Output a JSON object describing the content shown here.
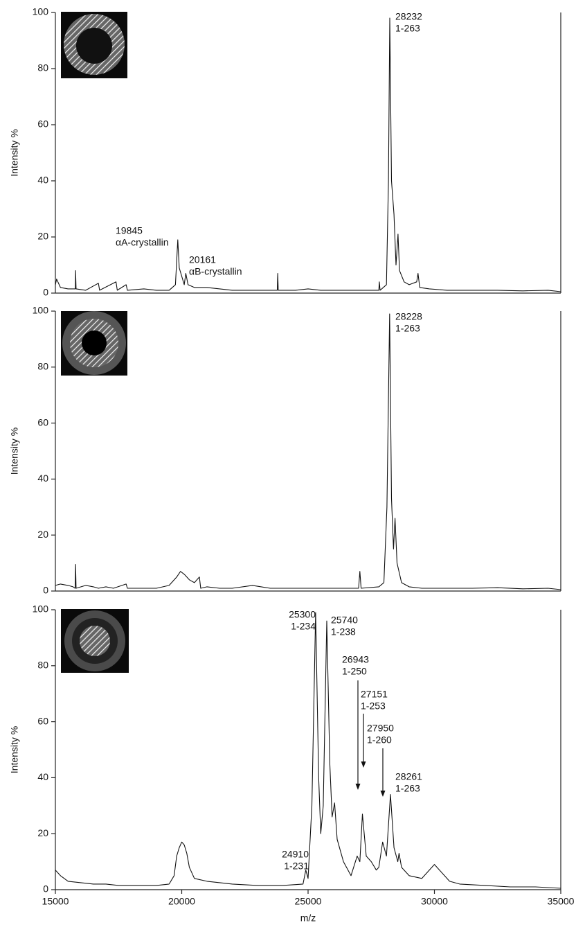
{
  "chart_data": [
    {
      "type": "line",
      "y_label": "Intensity %",
      "xlim": [
        15000,
        35000
      ],
      "ylim": [
        0,
        100
      ],
      "yticks": [
        0,
        20,
        40,
        60,
        80,
        100
      ],
      "x": [
        15000,
        15050,
        15200,
        15500,
        15790,
        15800,
        15820,
        16200,
        16700,
        16750,
        17400,
        17450,
        17800,
        17850,
        18500,
        19000,
        19500,
        19750,
        19845,
        19900,
        20000,
        20100,
        20161,
        20250,
        20500,
        21000,
        21500,
        22000,
        22500,
        23000,
        23780,
        23800,
        23820,
        24500,
        25000,
        25500,
        26000,
        26500,
        27000,
        27500,
        27800,
        27820,
        27850,
        28100,
        28180,
        28232,
        28300,
        28400,
        28480,
        28560,
        28620,
        28800,
        29000,
        29300,
        29350,
        29420,
        29800,
        30500,
        31500,
        32500,
        33500,
        34500,
        35000
      ],
      "values": [
        3,
        5,
        2,
        1.5,
        1.5,
        8,
        1.5,
        1,
        3.5,
        1,
        4,
        1,
        3,
        1,
        1.5,
        1,
        1,
        3,
        19,
        9,
        6,
        3,
        7,
        3,
        2,
        2,
        1.5,
        1,
        1,
        1,
        1,
        7,
        1,
        1,
        1.5,
        1,
        1,
        1,
        1,
        1,
        1,
        4,
        1,
        3,
        40,
        98,
        40,
        28,
        10,
        21,
        8,
        4,
        3,
        4,
        7,
        2,
        1.5,
        1,
        1,
        1,
        0.8,
        1,
        0.5
      ],
      "color": "#111111",
      "annotations": [
        [
          "19845",
          "αA-crystallin"
        ],
        [
          "20161",
          "αB-crystallin"
        ],
        [
          "28232",
          "1-263"
        ]
      ]
    },
    {
      "type": "line",
      "y_label": "Intensity %",
      "xlim": [
        15000,
        35000
      ],
      "ylim": [
        0,
        100
      ],
      "yticks": [
        0,
        20,
        40,
        60,
        80,
        100
      ],
      "x": [
        15000,
        15200,
        15500,
        15700,
        15780,
        15800,
        15820,
        16200,
        16500,
        16700,
        17000,
        17300,
        17800,
        17850,
        18500,
        19000,
        19500,
        19800,
        19950,
        20100,
        20300,
        20500,
        20700,
        20750,
        21000,
        21500,
        22000,
        22800,
        23500,
        24500,
        25500,
        26500,
        27000,
        27050,
        27100,
        27800,
        28000,
        28120,
        28228,
        28300,
        28380,
        28440,
        28520,
        28700,
        29000,
        29500,
        30500,
        31500,
        32500,
        33500,
        34500,
        35000
      ],
      "values": [
        2,
        2.5,
        2,
        1.5,
        1,
        9.5,
        1,
        2,
        1.5,
        1,
        1.5,
        1,
        2.5,
        1,
        1,
        1,
        2,
        5,
        7,
        6,
        4,
        3,
        5,
        1,
        1.5,
        1,
        1,
        2,
        1,
        1,
        1,
        1,
        1,
        7,
        1,
        1.5,
        3,
        30,
        99,
        33,
        15,
        26,
        10,
        3,
        1.5,
        1,
        1,
        1,
        1.2,
        0.8,
        1,
        0.5
      ],
      "color": "#111111",
      "annotations": [
        [
          "28228",
          "1-263"
        ]
      ]
    },
    {
      "type": "line",
      "y_label": "Intensity %",
      "x_label": "m/z",
      "xlim": [
        15000,
        35000
      ],
      "xticks": [
        15000,
        20000,
        25000,
        30000,
        35000
      ],
      "ylim": [
        0,
        100
      ],
      "yticks": [
        0,
        20,
        40,
        60,
        80,
        100
      ],
      "x": [
        15000,
        15200,
        15500,
        16000,
        16500,
        17000,
        17500,
        18500,
        19000,
        19500,
        19700,
        19800,
        19900,
        20000,
        20100,
        20200,
        20300,
        20500,
        21000,
        22000,
        23000,
        24000,
        24800,
        24910,
        25000,
        25150,
        25300,
        25420,
        25500,
        25600,
        25740,
        25860,
        25950,
        26050,
        26150,
        26400,
        26700,
        26943,
        27050,
        27151,
        27300,
        27500,
        27700,
        27800,
        27950,
        28100,
        28261,
        28400,
        28550,
        28600,
        28700,
        29000,
        29500,
        30000,
        30200,
        30600,
        31000,
        32000,
        33000,
        34000,
        35000
      ],
      "values": [
        7,
        5,
        3,
        2.5,
        2,
        2,
        1.5,
        1.5,
        1.5,
        2,
        5,
        12,
        15,
        17,
        16,
        13,
        8,
        4,
        3,
        2,
        1.5,
        1.5,
        2,
        7,
        4,
        30,
        99,
        40,
        20,
        30,
        96,
        45,
        26,
        31,
        18,
        10,
        5,
        12,
        10,
        27,
        12,
        10,
        7,
        8,
        17,
        12,
        34,
        15,
        10,
        13,
        8,
        5,
        4,
        9,
        7,
        3,
        2,
        1.5,
        1,
        1,
        0.5
      ],
      "color": "#111111",
      "annotations": [
        [
          "25300",
          "1-234"
        ],
        [
          "25740",
          "1-238"
        ],
        [
          "26943",
          "1-250"
        ],
        [
          "27151",
          "1-253"
        ],
        [
          "27950",
          "1-260"
        ],
        [
          "28261",
          "1-263"
        ],
        [
          "24910",
          "1-231"
        ]
      ]
    }
  ]
}
